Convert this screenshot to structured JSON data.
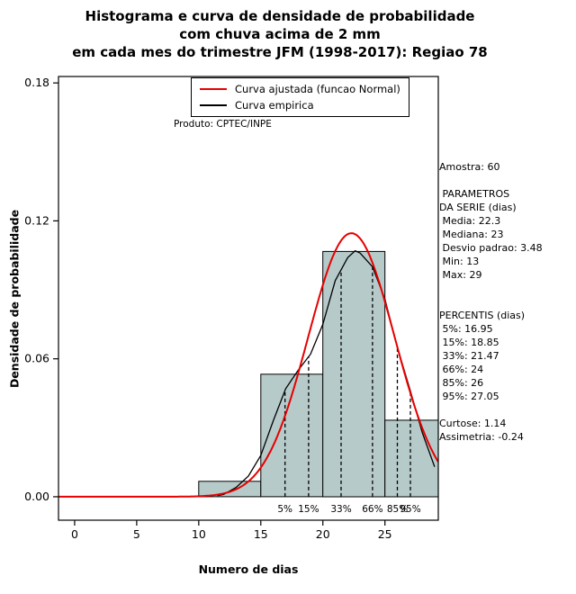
{
  "title": {
    "line1": "Histograma e curva de densidade de probabilidade",
    "line2": "com chuva acima de 2 mm",
    "line3": "em cada mes do trimestre JFM (1998-2017): Regiao 78"
  },
  "legend": {
    "items": [
      {
        "label": "Curva ajustada (funcao Normal)",
        "color": "#e60000"
      },
      {
        "label": "Curva empirica",
        "color": "#000000"
      }
    ]
  },
  "product_note": "Produto: CPTEC/INPE",
  "axes": {
    "xlabel": "Numero de dias",
    "ylabel": "Densidade de probabilidade"
  },
  "stats": {
    "lines": [
      "Amostra: 60",
      "",
      " PARAMETROS",
      "DA SERIE (dias)",
      " Media: 22.3",
      " Mediana: 23",
      " Desvio padrao: 3.48",
      " Min: 13",
      " Max: 29",
      "",
      "",
      "PERCENTIS (dias)",
      " 5%: 16.95",
      " 15%: 18.85",
      " 33%: 21.47",
      " 66%: 24",
      " 85%: 26",
      " 95%: 27.05",
      "",
      "Curtose: 1.14",
      "Assimetria: -0.24"
    ]
  },
  "chart_data": {
    "type": "bar",
    "title": "Histograma e curva de densidade de probabilidade com chuva acima de 2 mm em cada mes do trimestre JFM (1998-2017): Regiao 78",
    "xlabel": "Numero de dias",
    "ylabel": "Densidade de probabilidade",
    "xlim": [
      -1.3,
      29.3
    ],
    "ylim": [
      -0.0102,
      0.1828
    ],
    "x_ticks": [
      0,
      5,
      10,
      15,
      20,
      25
    ],
    "y_ticks": [
      0,
      0.06,
      0.12,
      0.18
    ],
    "y_tick_labels": [
      "0.00",
      "0.06",
      "0.12",
      "0.18"
    ],
    "grid": false,
    "legend_position": "top",
    "histogram": {
      "bin_edges": [
        10,
        15,
        20,
        25,
        30
      ],
      "densities": [
        0.0067,
        0.0533,
        0.1067,
        0.0333
      ],
      "counts": [
        2,
        16,
        32,
        10
      ],
      "fill_color": "#b6caca",
      "edge_color": "#000000"
    },
    "normal_curve": {
      "label": "Curva ajustada (funcao Normal)",
      "mean": 22.3,
      "sd": 3.48,
      "color": "#e60000"
    },
    "empirical_curve": {
      "label": "Curva empirica",
      "color": "#000000",
      "points": [
        [
          11.5,
          0.0005
        ],
        [
          12,
          0.001
        ],
        [
          13,
          0.004
        ],
        [
          14,
          0.009
        ],
        [
          15,
          0.018
        ],
        [
          16,
          0.033
        ],
        [
          17,
          0.047
        ],
        [
          18,
          0.055
        ],
        [
          19,
          0.062
        ],
        [
          20,
          0.075
        ],
        [
          21,
          0.094
        ],
        [
          22,
          0.104
        ],
        [
          22.6,
          0.107
        ],
        [
          23,
          0.106
        ],
        [
          24,
          0.1
        ],
        [
          25,
          0.086
        ],
        [
          26,
          0.065
        ],
        [
          27,
          0.047
        ],
        [
          28,
          0.028
        ],
        [
          29,
          0.013
        ]
      ]
    },
    "percentiles": [
      {
        "label": "5%",
        "value": 16.95
      },
      {
        "label": "15%",
        "value": 18.85
      },
      {
        "label": "33%",
        "value": 21.47
      },
      {
        "label": "66%",
        "value": 24
      },
      {
        "label": "85%",
        "value": 26
      },
      {
        "label": "95%",
        "value": 27.05
      }
    ],
    "sample_size": 60,
    "series_stats": {
      "media": 22.3,
      "mediana": 23,
      "desvio_padrao": 3.48,
      "min": 13,
      "max": 29,
      "curtose": 1.14,
      "assimetria": -0.24
    }
  }
}
